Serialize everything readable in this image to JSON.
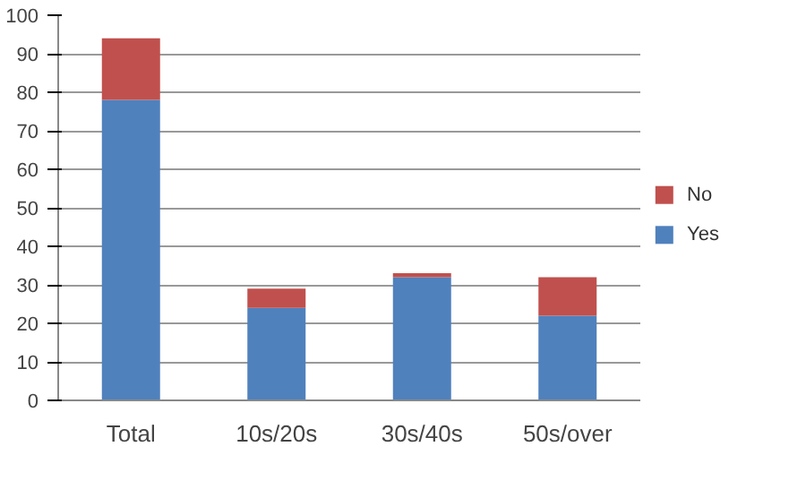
{
  "chart_data": {
    "type": "bar",
    "stacked": true,
    "categories": [
      "Total",
      "10s/20s",
      "30s/40s",
      "50s/over"
    ],
    "series": [
      {
        "name": "Yes",
        "color": "#4f81bd",
        "values": [
          78,
          24,
          32,
          22
        ]
      },
      {
        "name": "No",
        "color": "#c0504d",
        "values": [
          16,
          5,
          1,
          10
        ]
      }
    ],
    "ylim": [
      0,
      100
    ],
    "yticks": [
      0,
      10,
      20,
      30,
      40,
      50,
      60,
      70,
      80,
      90,
      100
    ],
    "grid": "y",
    "legend": "right"
  }
}
